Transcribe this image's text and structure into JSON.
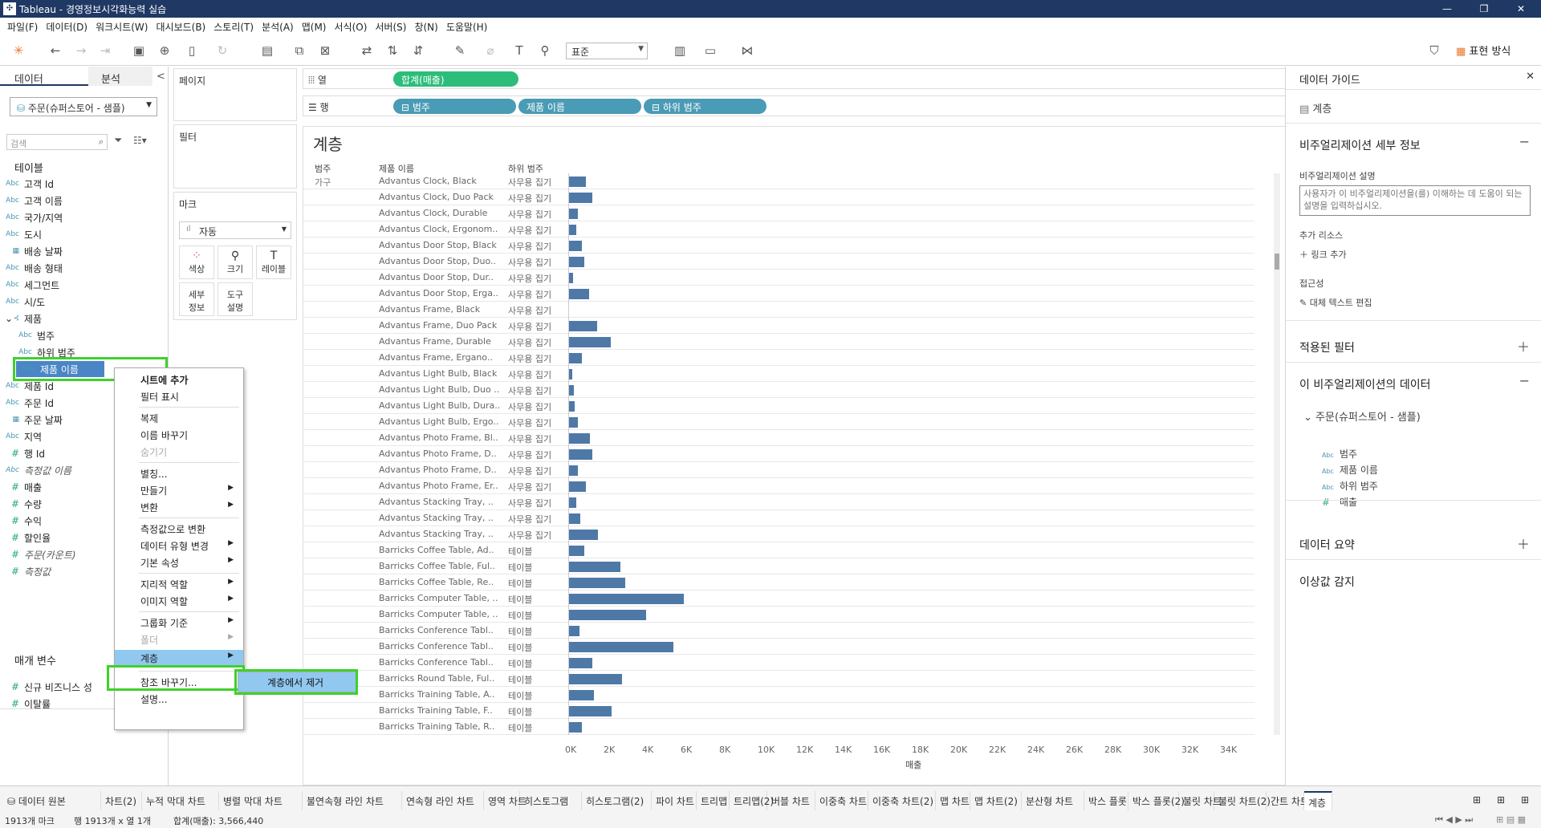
{
  "window": {
    "title": "Tableau - 경영정보시각화능력 실습",
    "app_icon": "tableau-icon"
  },
  "menu": [
    "파일(F)",
    "데이터(D)",
    "워크시트(W)",
    "대시보드(B)",
    "스토리(T)",
    "분석(A)",
    "맵(M)",
    "서식(O)",
    "서버(S)",
    "창(N)",
    "도움말(H)"
  ],
  "toolbar": {
    "fit": "표준",
    "show_me": "표현 방식"
  },
  "data_pane": {
    "tab_data": "데이터",
    "tab_analysis": "분석",
    "collapse": "<",
    "datasource": "주문(슈퍼스토어 - 샘플)",
    "search_placeholder": "검색",
    "tables_header": "테이블",
    "params_header": "매개 변수",
    "fields": [
      {
        "type": "Abc",
        "name": "고객 Id"
      },
      {
        "type": "Abc",
        "name": "고객 이름"
      },
      {
        "type": "Abc",
        "name": "국가/지역"
      },
      {
        "type": "Abc",
        "name": "도시"
      },
      {
        "type": "cal",
        "name": "배송 날짜"
      },
      {
        "type": "Abc",
        "name": "배송 형태"
      },
      {
        "type": "Abc",
        "name": "세그먼트"
      },
      {
        "type": "Abc",
        "name": "시/도"
      },
      {
        "type": "hier",
        "name": "제품"
      },
      {
        "type": "Abc",
        "name": "범주"
      },
      {
        "type": "Abc",
        "name": "하위 범주"
      },
      {
        "type": "Abc",
        "name": "제품 이름"
      },
      {
        "type": "Abc",
        "name": "제품 Id"
      },
      {
        "type": "Abc",
        "name": "주문 Id"
      },
      {
        "type": "cal",
        "name": "주문 날짜"
      },
      {
        "type": "Abc",
        "name": "지역"
      },
      {
        "type": "#",
        "name": "행 Id"
      },
      {
        "type": "Abc",
        "name": "측정값 이름"
      },
      {
        "type": "#",
        "name": "매출"
      },
      {
        "type": "#",
        "name": "수량"
      },
      {
        "type": "#",
        "name": "수익"
      },
      {
        "type": "#",
        "name": "할인율"
      },
      {
        "type": "#",
        "name": "주문(카운트)"
      },
      {
        "type": "#",
        "name": "측정값"
      }
    ],
    "params": [
      {
        "type": "#",
        "name": "신규 비즈니스 성"
      },
      {
        "type": "#",
        "name": "이탈률"
      }
    ]
  },
  "shelves": {
    "pages": "페이지",
    "filters": "필터",
    "marks": "마크",
    "mark_type": "자동",
    "mark_buttons": [
      "색상",
      "크기",
      "레이블",
      "세부\n정보",
      "도구\n설명"
    ],
    "columns_label": "열",
    "rows_label": "행",
    "column_pills": [
      "합계(매출)"
    ],
    "row_pills": [
      "⊟ 범주",
      "제품 이름",
      "⊟ 하위 범주"
    ]
  },
  "viz": {
    "title": "계층",
    "headers": [
      "범주",
      "제품 이름",
      "하위 범주"
    ],
    "first_category": "가구",
    "axis_title": "매출"
  },
  "chart_data": {
    "type": "bar",
    "xlabel": "매출",
    "xlim": [
      0,
      36000
    ],
    "x_ticks": [
      "0K",
      "2K",
      "4K",
      "6K",
      "8K",
      "10K",
      "12K",
      "14K",
      "16K",
      "18K",
      "20K",
      "22K",
      "24K",
      "26K",
      "28K",
      "30K",
      "32K",
      "34K"
    ],
    "rows": [
      {
        "name": "Advantus Clock, Black",
        "sub": "사무용 집기",
        "value": 900
      },
      {
        "name": "Advantus Clock, Duo Pack",
        "sub": "사무용 집기",
        "value": 1250
      },
      {
        "name": "Advantus Clock, Durable",
        "sub": "사무용 집기",
        "value": 500
      },
      {
        "name": "Advantus Clock, Ergonom..",
        "sub": "사무용 집기",
        "value": 420
      },
      {
        "name": "Advantus Door Stop, Black",
        "sub": "사무용 집기",
        "value": 700
      },
      {
        "name": "Advantus Door Stop, Duo..",
        "sub": "사무용 집기",
        "value": 820
      },
      {
        "name": "Advantus Door Stop, Dur..",
        "sub": "사무용 집기",
        "value": 260
      },
      {
        "name": "Advantus Door Stop, Erga..",
        "sub": "사무용 집기",
        "value": 1100
      },
      {
        "name": "Advantus Frame, Black",
        "sub": "사무용 집기",
        "value": 60
      },
      {
        "name": "Advantus Frame, Duo Pack",
        "sub": "사무용 집기",
        "value": 1480
      },
      {
        "name": "Advantus Frame, Durable",
        "sub": "사무용 집기",
        "value": 2200
      },
      {
        "name": "Advantus Frame, Ergano..",
        "sub": "사무용 집기",
        "value": 720
      },
      {
        "name": "Advantus Light Bulb, Black",
        "sub": "사무용 집기",
        "value": 220
      },
      {
        "name": "Advantus Light Bulb, Duo ..",
        "sub": "사무용 집기",
        "value": 300
      },
      {
        "name": "Advantus Light Bulb, Dura..",
        "sub": "사무용 집기",
        "value": 330
      },
      {
        "name": "Advantus Light Bulb, Ergo..",
        "sub": "사무용 집기",
        "value": 480
      },
      {
        "name": "Advantus Photo Frame, Bl..",
        "sub": "사무용 집기",
        "value": 1120
      },
      {
        "name": "Advantus Photo Frame, D..",
        "sub": "사무용 집기",
        "value": 1250
      },
      {
        "name": "Advantus Photo Frame, D..",
        "sub": "사무용 집기",
        "value": 500
      },
      {
        "name": "Advantus Photo Frame, Er..",
        "sub": "사무용 집기",
        "value": 900
      },
      {
        "name": "Advantus Stacking Tray, ..",
        "sub": "사무용 집기",
        "value": 420
      },
      {
        "name": "Advantus Stacking Tray, ..",
        "sub": "사무용 집기",
        "value": 620
      },
      {
        "name": "Advantus Stacking Tray, ..",
        "sub": "사무용 집기",
        "value": 1550
      },
      {
        "name": "Barricks Coffee Table, Ad..",
        "sub": "테이블",
        "value": 820
      },
      {
        "name": "Barricks Coffee Table, Ful..",
        "sub": "테이블",
        "value": 2700
      },
      {
        "name": "Barricks Coffee Table, Re..",
        "sub": "테이블",
        "value": 2950
      },
      {
        "name": "Barricks Computer Table, ..",
        "sub": "테이블",
        "value": 6000
      },
      {
        "name": "Barricks Computer Table, ..",
        "sub": "테이블",
        "value": 4050
      },
      {
        "name": "Barricks Conference Tabl..",
        "sub": "테이블",
        "value": 600
      },
      {
        "name": "Barricks Conference Tabl..",
        "sub": "테이블",
        "value": 5450
      },
      {
        "name": "Barricks Conference Tabl..",
        "sub": "테이블",
        "value": 1250
      },
      {
        "name": "Barricks Round Table, Ful..",
        "sub": "테이블",
        "value": 2800
      },
      {
        "name": "Barricks Training Table, A..",
        "sub": "테이블",
        "value": 1350
      },
      {
        "name": "Barricks Training Table, F..",
        "sub": "테이블",
        "value": 2250
      },
      {
        "name": "Barricks Training Table, R..",
        "sub": "테이블",
        "value": 720
      }
    ]
  },
  "context_menu": {
    "items": [
      {
        "label": "시트에 추가",
        "bold": true
      },
      {
        "label": "필터 표시"
      },
      {
        "sep": true
      },
      {
        "label": "복제"
      },
      {
        "label": "이름 바꾸기"
      },
      {
        "label": "숨기기",
        "disabled": true
      },
      {
        "sep": true
      },
      {
        "label": "별칭..."
      },
      {
        "label": "만들기",
        "sub": true
      },
      {
        "label": "변환",
        "sub": true
      },
      {
        "sep": true
      },
      {
        "label": "측정값으로 변환"
      },
      {
        "label": "데이터 유형 변경",
        "sub": true
      },
      {
        "label": "기본 속성",
        "sub": true
      },
      {
        "sep": true
      },
      {
        "label": "지리적 역할",
        "sub": true
      },
      {
        "label": "이미지 역할",
        "sub": true
      },
      {
        "sep": true
      },
      {
        "label": "그룹화 기준",
        "sub": true
      },
      {
        "label": "폴더",
        "sub": true,
        "disabled": true
      },
      {
        "label": "계층",
        "sub": true,
        "active": true
      },
      {
        "sep": true
      },
      {
        "label": "참조 바꾸기..."
      },
      {
        "label": "설명..."
      }
    ],
    "submenu_item": "계층에서 제거"
  },
  "data_guide": {
    "title": "데이터 가이드",
    "sheet": "계층",
    "viz_details": "비주얼리제이션 세부 정보",
    "viz_desc_label": "비주얼리제이션 설명",
    "viz_desc_placeholder": "사용자가 이 비주얼리제이션을(를) 이해하는 데 도움이 되는 설명을 입력하십시오.",
    "resources_label": "추가 리소스",
    "add_link": "링크 추가",
    "accessibility_label": "접근성",
    "alt_text": "대체 텍스트 편집",
    "applied_filters": "적용된 필터",
    "viz_data": "이 비주얼리제이션의 데이터",
    "datasource": "주문(슈퍼스토어 - 샘플)",
    "fields": [
      {
        "type": "Abc",
        "name": "범주"
      },
      {
        "type": "Abc",
        "name": "제품 이름"
      },
      {
        "type": "Abc",
        "name": "하위 범주"
      },
      {
        "type": "#",
        "name": "매출"
      }
    ],
    "data_summary": "데이터 요약",
    "outliers": "이상값 감지"
  },
  "sheet_tabs": [
    "데이터 원본",
    "차트(2)",
    "누적 막대 차트",
    "병렬 막대 차트",
    "불연속형 라인 차트",
    "연속형 라인 차트",
    "영역 차트",
    "히스토그램",
    "히스토그램(2)",
    "파이 차트",
    "트리맵",
    "트리맵(2)",
    "버블 차트",
    "이중축 차트",
    "이중축 차트(2)",
    "맵 차트",
    "맵 차트(2)",
    "분산형 차트",
    "박스 플롯",
    "박스 플롯(2)",
    "불릿 차트",
    "불릿 차트(2)",
    "간트 차트",
    "계층"
  ],
  "active_tab": "계층",
  "status": {
    "marks": "1913개 마크",
    "dims": "행 1913개 x 열 1개",
    "sum": "합계(매출): 3,566,440"
  },
  "colors": {
    "bar": "#4e79a7",
    "highlight": "#3fd12b",
    "title_bar": "#1f3864"
  }
}
